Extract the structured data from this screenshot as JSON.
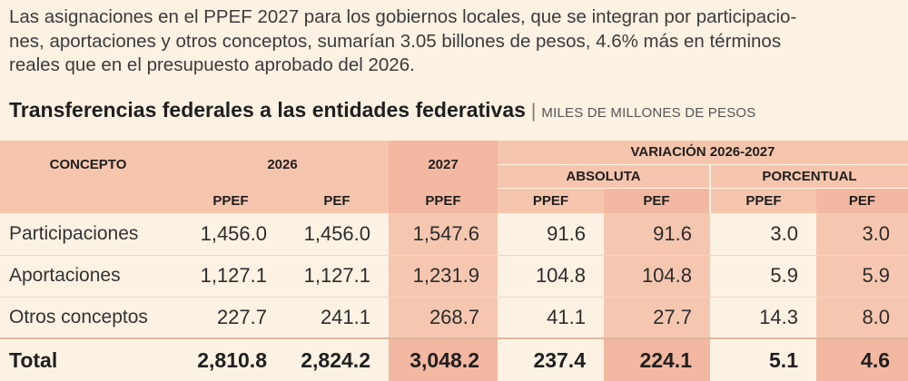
{
  "intro_lines": [
    "Las asignaciones en el PPEF 2027 para los gobiernos locales, que se integran por participacio-",
    "nes, aportaciones y otros conceptos, sumarían 3.05 billones de pesos, 4.6% más en términos",
    "reales que en el presupuesto aprobado del 2026."
  ],
  "table_title": "Transferencias federales a las entidades federativas",
  "separator": "|",
  "unit": "MILES DE MILLONES DE PESOS",
  "headers": {
    "concepto": "CONCEPTO",
    "y2026": "2026",
    "y2027": "2027",
    "variacion": "VARIACIÓN 2026-2027",
    "absoluta": "ABSOLUTA",
    "porcentual": "PORCENTUAL",
    "sub": [
      "PPEF",
      "PEF",
      "PPEF",
      "PPEF",
      "PEF",
      "PPEF",
      "PEF"
    ]
  },
  "rows": [
    {
      "label": "Participaciones",
      "values": [
        "1,456.0",
        "1,456.0",
        "1,547.6",
        "91.6",
        "91.6",
        "3.0",
        "3.0"
      ]
    },
    {
      "label": "Aportaciones",
      "values": [
        "1,127.1",
        "1,127.1",
        "1,231.9",
        "104.8",
        "104.8",
        "5.9",
        "5.9"
      ]
    },
    {
      "label": "Otros conceptos",
      "values": [
        "227.7",
        "241.1",
        "268.7",
        "41.1",
        "27.7",
        "14.3",
        "8.0"
      ]
    }
  ],
  "total": {
    "label": "Total",
    "values": [
      "2,810.8",
      "2,824.2",
      "3,048.2",
      "237.4",
      "224.1",
      "5.1",
      "4.6"
    ]
  },
  "colors": {
    "background": "#fcf2e3",
    "header": "#f6c5ad",
    "highlight": "#f3b8a1"
  }
}
